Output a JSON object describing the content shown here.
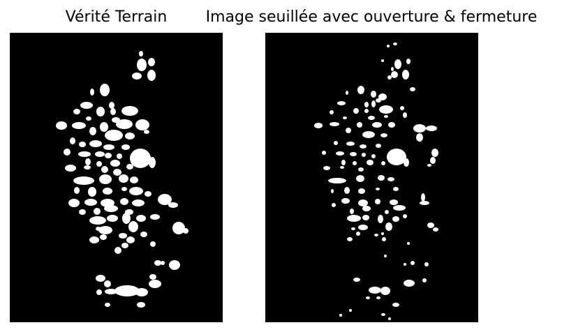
{
  "figure": {
    "panels": [
      {
        "title": "Vérité Terrain",
        "image": "binary-mask-ground-truth"
      },
      {
        "title": "Image seuillée avec ouverture & fermeture",
        "image": "binary-mask-thresholded-opening-closing"
      }
    ],
    "colors": {
      "background": "#000000",
      "foreground": "#ffffff",
      "page": "#ffffff"
    }
  }
}
